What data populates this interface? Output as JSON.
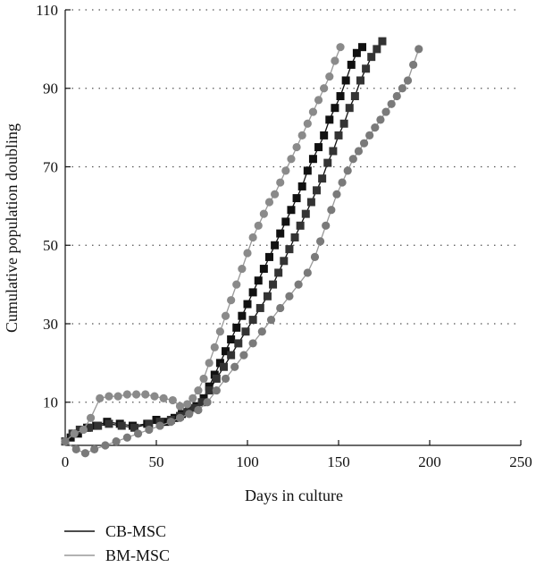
{
  "chart_data": {
    "type": "line",
    "xlabel": "Days in culture",
    "ylabel": "Cumulative population doubling",
    "xlim": [
      0,
      250
    ],
    "ylim": [
      -1,
      110
    ],
    "xticks": [
      0,
      50,
      100,
      150,
      200,
      250
    ],
    "yticks": [
      10,
      30,
      50,
      70,
      90,
      110
    ],
    "grid": "horizontal-dotted",
    "legend_position": "bottom-left",
    "legend": [
      {
        "label": "CB-MSC",
        "color": "#111111"
      },
      {
        "label": "BM-MSC",
        "color": "#999999"
      }
    ],
    "series": [
      {
        "name": "CB-MSC",
        "group": "CB-MSC",
        "marker": "square",
        "line_color": "#111111",
        "marker_color": "#111111",
        "points": [
          [
            0,
            0
          ],
          [
            3,
            1
          ],
          [
            7,
            2
          ],
          [
            12,
            3.5
          ],
          [
            17,
            4
          ],
          [
            23,
            5
          ],
          [
            30,
            4.5
          ],
          [
            37,
            4
          ],
          [
            45,
            4.5
          ],
          [
            50,
            5.5
          ],
          [
            55,
            5
          ],
          [
            60,
            6
          ],
          [
            64,
            7
          ],
          [
            68,
            8
          ],
          [
            72,
            9
          ],
          [
            76,
            11
          ],
          [
            79,
            14
          ],
          [
            82,
            17
          ],
          [
            85,
            20
          ],
          [
            88,
            23
          ],
          [
            91,
            26
          ],
          [
            94,
            29
          ],
          [
            97,
            32
          ],
          [
            100,
            35
          ],
          [
            103,
            38
          ],
          [
            106,
            41
          ],
          [
            109,
            44
          ],
          [
            112,
            47
          ],
          [
            115,
            50
          ],
          [
            118,
            53
          ],
          [
            121,
            56
          ],
          [
            124,
            59
          ],
          [
            127,
            62
          ],
          [
            130,
            65
          ],
          [
            133,
            69
          ],
          [
            136,
            72
          ],
          [
            139,
            75
          ],
          [
            142,
            78
          ],
          [
            145,
            82
          ],
          [
            148,
            85
          ],
          [
            151,
            88
          ],
          [
            154,
            92
          ],
          [
            157,
            96
          ],
          [
            160,
            99
          ],
          [
            163,
            100.5
          ]
        ]
      },
      {
        "name": "CB-MSC",
        "group": "CB-MSC",
        "marker": "square",
        "line_color": "#111111",
        "marker_color": "#333333",
        "points": [
          [
            0,
            0
          ],
          [
            4,
            2
          ],
          [
            8,
            3
          ],
          [
            13,
            3.5
          ],
          [
            18,
            4
          ],
          [
            24,
            4.5
          ],
          [
            31,
            4
          ],
          [
            38,
            3.5
          ],
          [
            46,
            4.5
          ],
          [
            52,
            5
          ],
          [
            58,
            5.5
          ],
          [
            63,
            6.5
          ],
          [
            67,
            7.5
          ],
          [
            71,
            8.5
          ],
          [
            75,
            10
          ],
          [
            79,
            13
          ],
          [
            83,
            16
          ],
          [
            87,
            19
          ],
          [
            91,
            22
          ],
          [
            95,
            25
          ],
          [
            99,
            28
          ],
          [
            103,
            31
          ],
          [
            107,
            34
          ],
          [
            111,
            37
          ],
          [
            114,
            40
          ],
          [
            117,
            43
          ],
          [
            120,
            46
          ],
          [
            123,
            49
          ],
          [
            126,
            52
          ],
          [
            129,
            55
          ],
          [
            132,
            58
          ],
          [
            135,
            61
          ],
          [
            138,
            64
          ],
          [
            141,
            67
          ],
          [
            144,
            71
          ],
          [
            147,
            74
          ],
          [
            150,
            78
          ],
          [
            153,
            81
          ],
          [
            156,
            85
          ],
          [
            159,
            88
          ],
          [
            162,
            92
          ],
          [
            165,
            95
          ],
          [
            168,
            98
          ],
          [
            171,
            100
          ],
          [
            174,
            102
          ]
        ]
      },
      {
        "name": "BM-MSC",
        "group": "BM-MSC",
        "marker": "circle",
        "line_color": "#999999",
        "marker_color": "#8a8a8a",
        "points": [
          [
            0,
            0
          ],
          [
            5,
            2
          ],
          [
            10,
            3
          ],
          [
            14,
            6
          ],
          [
            19,
            11
          ],
          [
            24,
            11.5
          ],
          [
            29,
            11.5
          ],
          [
            34,
            12
          ],
          [
            39,
            12
          ],
          [
            44,
            12
          ],
          [
            49,
            11.5
          ],
          [
            54,
            11
          ],
          [
            59,
            10.5
          ],
          [
            63,
            9
          ],
          [
            67,
            9.5
          ],
          [
            70,
            11
          ],
          [
            73,
            13
          ],
          [
            76,
            16
          ],
          [
            79,
            20
          ],
          [
            82,
            24
          ],
          [
            85,
            28
          ],
          [
            88,
            32
          ],
          [
            91,
            36
          ],
          [
            94,
            40
          ],
          [
            97,
            44
          ],
          [
            100,
            48
          ],
          [
            103,
            52
          ],
          [
            106,
            55
          ],
          [
            109,
            58
          ],
          [
            112,
            61
          ],
          [
            115,
            63
          ],
          [
            118,
            66
          ],
          [
            121,
            69
          ],
          [
            124,
            72
          ],
          [
            127,
            75
          ],
          [
            130,
            78
          ],
          [
            133,
            81
          ],
          [
            136,
            84
          ],
          [
            139,
            87
          ],
          [
            142,
            90
          ],
          [
            145,
            93
          ],
          [
            148,
            97
          ],
          [
            151,
            100.5
          ]
        ]
      },
      {
        "name": "BM-MSC",
        "group": "BM-MSC",
        "marker": "circle",
        "line_color": "#999999",
        "marker_color": "#7a7a7a",
        "points": [
          [
            0,
            0
          ],
          [
            6,
            -2
          ],
          [
            11,
            -3
          ],
          [
            16,
            -2
          ],
          [
            22,
            -1
          ],
          [
            28,
            0
          ],
          [
            34,
            1
          ],
          [
            40,
            2
          ],
          [
            46,
            3
          ],
          [
            52,
            4
          ],
          [
            58,
            5
          ],
          [
            63,
            6
          ],
          [
            68,
            7
          ],
          [
            73,
            8
          ],
          [
            78,
            10
          ],
          [
            83,
            13
          ],
          [
            88,
            16
          ],
          [
            93,
            19
          ],
          [
            98,
            22
          ],
          [
            103,
            25
          ],
          [
            108,
            28
          ],
          [
            113,
            31
          ],
          [
            118,
            34
          ],
          [
            123,
            37
          ],
          [
            128,
            40
          ],
          [
            133,
            43
          ],
          [
            137,
            47
          ],
          [
            140,
            51
          ],
          [
            143,
            55
          ],
          [
            146,
            59
          ],
          [
            149,
            63
          ],
          [
            152,
            66
          ],
          [
            155,
            69
          ],
          [
            158,
            72
          ],
          [
            161,
            74
          ],
          [
            164,
            76
          ],
          [
            167,
            78
          ],
          [
            170,
            80
          ],
          [
            173,
            82
          ],
          [
            176,
            84
          ],
          [
            179,
            86
          ],
          [
            182,
            88
          ],
          [
            185,
            90
          ],
          [
            188,
            92
          ],
          [
            191,
            96
          ],
          [
            194,
            100
          ]
        ]
      }
    ]
  }
}
